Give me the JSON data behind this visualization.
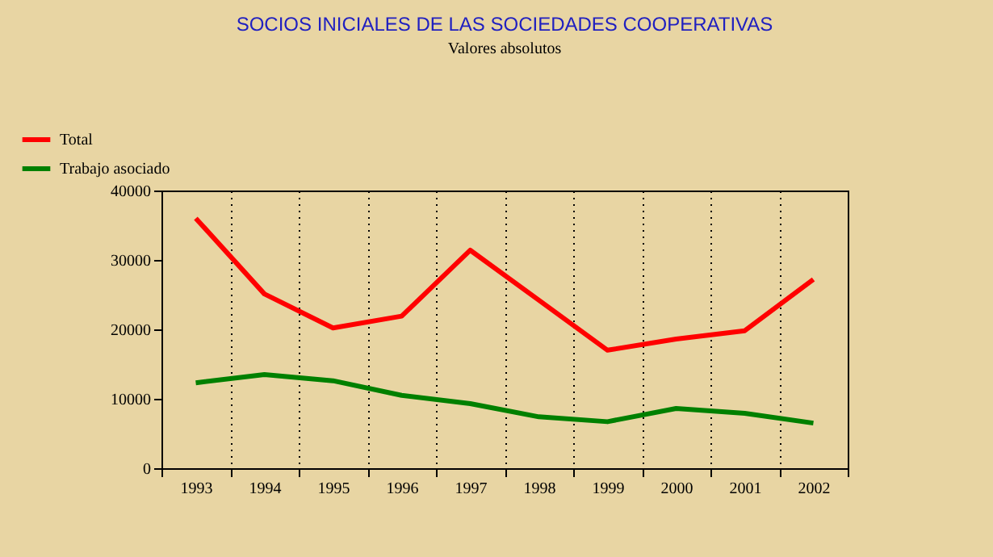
{
  "chart_data": {
    "type": "line",
    "title": "SOCIOS INICIALES DE LAS SOCIEDADES COOPERATIVAS",
    "subtitle": "Valores absolutos",
    "categories": [
      "1993",
      "1994",
      "1995",
      "1996",
      "1997",
      "1998",
      "1999",
      "2000",
      "2001",
      "2002"
    ],
    "series": [
      {
        "name": "Total",
        "color": "#ff0000",
        "values": [
          36000,
          25100,
          20200,
          21900,
          31400,
          24200,
          17000,
          18600,
          19800,
          27200
        ]
      },
      {
        "name": "Trabajo asociado",
        "color": "#008000",
        "values": [
          12300,
          13500,
          12600,
          10500,
          9300,
          7400,
          6700,
          8600,
          7900,
          6500
        ]
      }
    ],
    "ylim": [
      0,
      40000
    ],
    "yticks": [
      0,
      10000,
      20000,
      30000,
      40000
    ],
    "grid": "x",
    "legend": "top left",
    "marker": "none",
    "line_style": "solid"
  }
}
